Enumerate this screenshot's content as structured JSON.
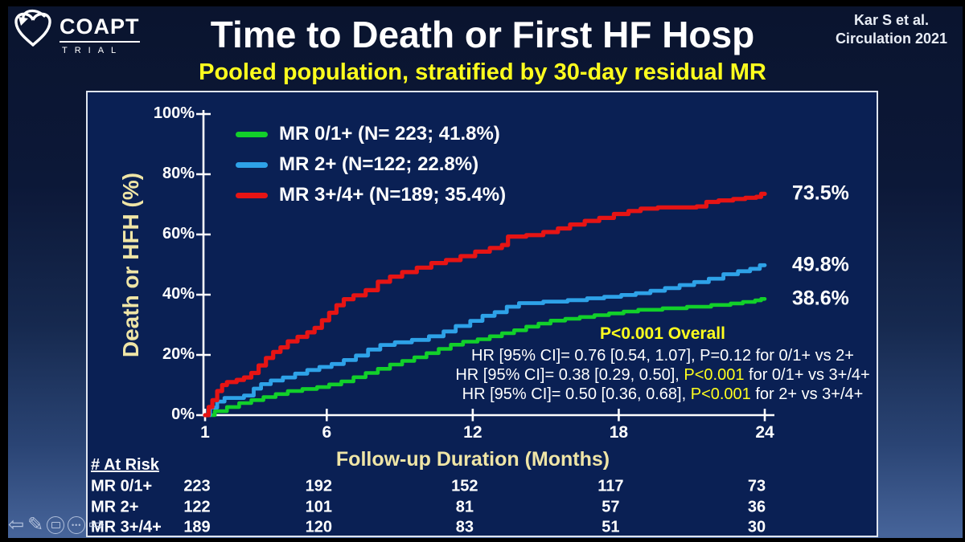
{
  "slide": {
    "logo": {
      "brand": "COAPT",
      "sub": "TRIAL"
    },
    "title": "Time to Death or First HF Hosp",
    "subtitle": "Pooled population, stratified by 30-day residual MR",
    "citation": {
      "line1": "Kar S et al.",
      "line2": "Circulation 2021"
    }
  },
  "colors": {
    "background_top": "#0a142e",
    "background_bottom": "#48669c",
    "panel_fill": "#0a2054",
    "panel_border": "#dfe5ef",
    "axis": "#ffffff",
    "accent_yellow": "#ffff1e",
    "pale_yellow_labels": "#efe5a6",
    "green": "#12d02a",
    "blue": "#2ea2e8",
    "red": "#e61414"
  },
  "chart_data": {
    "type": "line",
    "subtype": "kaplan_meier_step",
    "title": "Time to Death or First HF Hosp",
    "xlabel": "Follow-up Duration (Months)",
    "ylabel": "Death or HFH (%)",
    "xlim": [
      1,
      24
    ],
    "ylim": [
      0,
      100
    ],
    "grid": false,
    "legend_position": "upper-left-inside",
    "xticks": [
      1,
      6,
      12,
      18,
      24
    ],
    "yticks": [
      {
        "value": 0,
        "label": "0%"
      },
      {
        "value": 20,
        "label": "20%"
      },
      {
        "value": 40,
        "label": "40%"
      },
      {
        "value": 60,
        "label": "60%"
      },
      {
        "value": 80,
        "label": "80%"
      },
      {
        "value": 100,
        "label": "100%"
      }
    ],
    "series": [
      {
        "name": "MR 0/1+",
        "legend": "MR 0/1+ (N= 223; 41.8%)",
        "color": "#12d02a",
        "end_label": "38.6%",
        "end_value": 38.6,
        "points": [
          [
            1,
            0
          ],
          [
            1.4,
            1.3
          ],
          [
            1.9,
            2.7
          ],
          [
            2.4,
            4
          ],
          [
            2.9,
            5
          ],
          [
            3.4,
            6
          ],
          [
            3.9,
            7
          ],
          [
            4.4,
            8
          ],
          [
            5,
            8.7
          ],
          [
            5.6,
            9.3
          ],
          [
            6.1,
            10.2
          ],
          [
            6.6,
            11.2
          ],
          [
            7.1,
            12.6
          ],
          [
            7.6,
            14
          ],
          [
            8.1,
            15.4
          ],
          [
            8.6,
            16.8
          ],
          [
            9.1,
            18
          ],
          [
            9.6,
            19.2
          ],
          [
            10.1,
            20.6
          ],
          [
            10.6,
            22
          ],
          [
            11.1,
            23.4
          ],
          [
            11.6,
            24.4
          ],
          [
            12.2,
            25.2
          ],
          [
            12.7,
            26.2
          ],
          [
            13.2,
            27.2
          ],
          [
            13.7,
            28.2
          ],
          [
            14.2,
            29.4
          ],
          [
            14.7,
            30.4
          ],
          [
            15.2,
            31.4
          ],
          [
            15.8,
            32
          ],
          [
            16.4,
            32.6
          ],
          [
            17,
            33.2
          ],
          [
            17.6,
            33.8
          ],
          [
            18.2,
            34.4
          ],
          [
            18.8,
            35
          ],
          [
            19.8,
            35.5
          ],
          [
            20.8,
            36
          ],
          [
            21.8,
            36.6
          ],
          [
            22.6,
            37.1
          ],
          [
            23.1,
            37.6
          ],
          [
            23.6,
            38.1
          ],
          [
            23.85,
            38.6
          ],
          [
            24,
            38.6
          ]
        ]
      },
      {
        "name": "MR 2+",
        "legend": "MR 2+ (N=122; 22.8%)",
        "color": "#2ea2e8",
        "end_label": "49.8%",
        "end_value": 49.8,
        "points": [
          [
            1,
            0
          ],
          [
            1.2,
            2.5
          ],
          [
            1.5,
            4.5
          ],
          [
            1.8,
            5.7
          ],
          [
            2.6,
            6.5
          ],
          [
            3,
            8.8
          ],
          [
            3.3,
            10.3
          ],
          [
            3.7,
            11.5
          ],
          [
            4.2,
            12.5
          ],
          [
            4.7,
            13.8
          ],
          [
            5.2,
            15
          ],
          [
            5.7,
            16
          ],
          [
            6.2,
            17
          ],
          [
            6.7,
            18.3
          ],
          [
            7.2,
            19.8
          ],
          [
            7.7,
            21.8
          ],
          [
            8.2,
            23.3
          ],
          [
            8.8,
            24.2
          ],
          [
            9.5,
            25
          ],
          [
            10.2,
            26.2
          ],
          [
            10.8,
            27.8
          ],
          [
            11.3,
            29.6
          ],
          [
            11.9,
            31.3
          ],
          [
            12.4,
            33
          ],
          [
            12.9,
            34.2
          ],
          [
            13.4,
            36
          ],
          [
            13.9,
            37.2
          ],
          [
            14.9,
            37.7
          ],
          [
            15.9,
            38.2
          ],
          [
            16.7,
            38.8
          ],
          [
            17.4,
            39.3
          ],
          [
            18.1,
            39.9
          ],
          [
            18.7,
            40.5
          ],
          [
            19.3,
            41.3
          ],
          [
            19.9,
            42.2
          ],
          [
            20.5,
            43.2
          ],
          [
            21.1,
            44.2
          ],
          [
            21.7,
            45.3
          ],
          [
            22.3,
            46.8
          ],
          [
            22.9,
            47.8
          ],
          [
            23.4,
            48.6
          ],
          [
            23.8,
            49.8
          ],
          [
            24,
            49.8
          ]
        ]
      },
      {
        "name": "MR 3+/4+",
        "legend": "MR 3+/4+ (N=189; 35.4%)",
        "color": "#e61414",
        "end_label": "73.5%",
        "end_value": 73.5,
        "points": [
          [
            1,
            0
          ],
          [
            1.15,
            2.7
          ],
          [
            1.3,
            5
          ],
          [
            1.5,
            8
          ],
          [
            1.7,
            10
          ],
          [
            1.9,
            11
          ],
          [
            2.3,
            11.7
          ],
          [
            2.6,
            12.5
          ],
          [
            2.9,
            14
          ],
          [
            3.2,
            16.5
          ],
          [
            3.5,
            19
          ],
          [
            3.8,
            21
          ],
          [
            4.1,
            22.5
          ],
          [
            4.4,
            24.5
          ],
          [
            4.8,
            26
          ],
          [
            5.2,
            27.5
          ],
          [
            5.5,
            29
          ],
          [
            5.8,
            31.5
          ],
          [
            6.1,
            34
          ],
          [
            6.4,
            36.5
          ],
          [
            6.7,
            38.5
          ],
          [
            7.1,
            39.8
          ],
          [
            7.6,
            41.5
          ],
          [
            8.1,
            44.3
          ],
          [
            8.6,
            46
          ],
          [
            9.1,
            47.5
          ],
          [
            9.7,
            49
          ],
          [
            10.3,
            50.5
          ],
          [
            10.9,
            51.5
          ],
          [
            11.5,
            52.8
          ],
          [
            12.1,
            54.3
          ],
          [
            12.7,
            55.5
          ],
          [
            13.2,
            56.5
          ],
          [
            13.45,
            59.3
          ],
          [
            14.2,
            59.8
          ],
          [
            14.9,
            60.8
          ],
          [
            15.5,
            62
          ],
          [
            16,
            63.3
          ],
          [
            16.6,
            64.5
          ],
          [
            17.2,
            65.5
          ],
          [
            17.8,
            66.8
          ],
          [
            18.4,
            67.8
          ],
          [
            18.9,
            68.6
          ],
          [
            19.6,
            69
          ],
          [
            21.2,
            69.3
          ],
          [
            21.6,
            70.8
          ],
          [
            22.1,
            71.3
          ],
          [
            22.7,
            71.8
          ],
          [
            23.2,
            72.2
          ],
          [
            23.65,
            72.5
          ],
          [
            23.85,
            73.5
          ],
          [
            24,
            73.5
          ]
        ]
      }
    ],
    "stats": {
      "overall": "P<0.001 Overall",
      "lines": [
        {
          "prefix": "HR [95% CI]= 0.76 [0.54, 1.07], ",
          "p": "P=0.12",
          "suffix": " for 0/1+ vs 2+",
          "p_yellow": false
        },
        {
          "prefix": "HR [95% CI]= 0.38 [0.29, 0.50], ",
          "p": "P<0.001",
          "suffix": " for 0/1+ vs 3+/4+",
          "p_yellow": true
        },
        {
          "prefix": "HR [95% CI]= 0.50 [0.36, 0.68], ",
          "p": "P<0.001",
          "suffix": " for 2+ vs 3+/4+",
          "p_yellow": true
        }
      ]
    },
    "at_risk": {
      "header": "# At Risk",
      "timepoints": [
        1,
        6,
        12,
        18,
        24
      ],
      "rows": [
        {
          "label": "MR 0/1+",
          "values": [
            223,
            192,
            152,
            117,
            73
          ]
        },
        {
          "label": "MR 2+",
          "values": [
            122,
            101,
            81,
            57,
            36
          ]
        },
        {
          "label": "MR 3+/4+",
          "values": [
            189,
            120,
            83,
            51,
            30
          ]
        }
      ]
    }
  },
  "toolbar": {
    "items": [
      {
        "name": "previous-slide",
        "kind": "glyph",
        "glyph": "⇦"
      },
      {
        "name": "pen-tool",
        "kind": "glyph",
        "glyph": "✎"
      },
      {
        "name": "show-slides",
        "kind": "circle-rect"
      },
      {
        "name": "more-options",
        "kind": "circle-dots",
        "glyph": "•••"
      },
      {
        "name": "next-slide",
        "kind": "glyph",
        "glyph": "⇨"
      }
    ]
  }
}
